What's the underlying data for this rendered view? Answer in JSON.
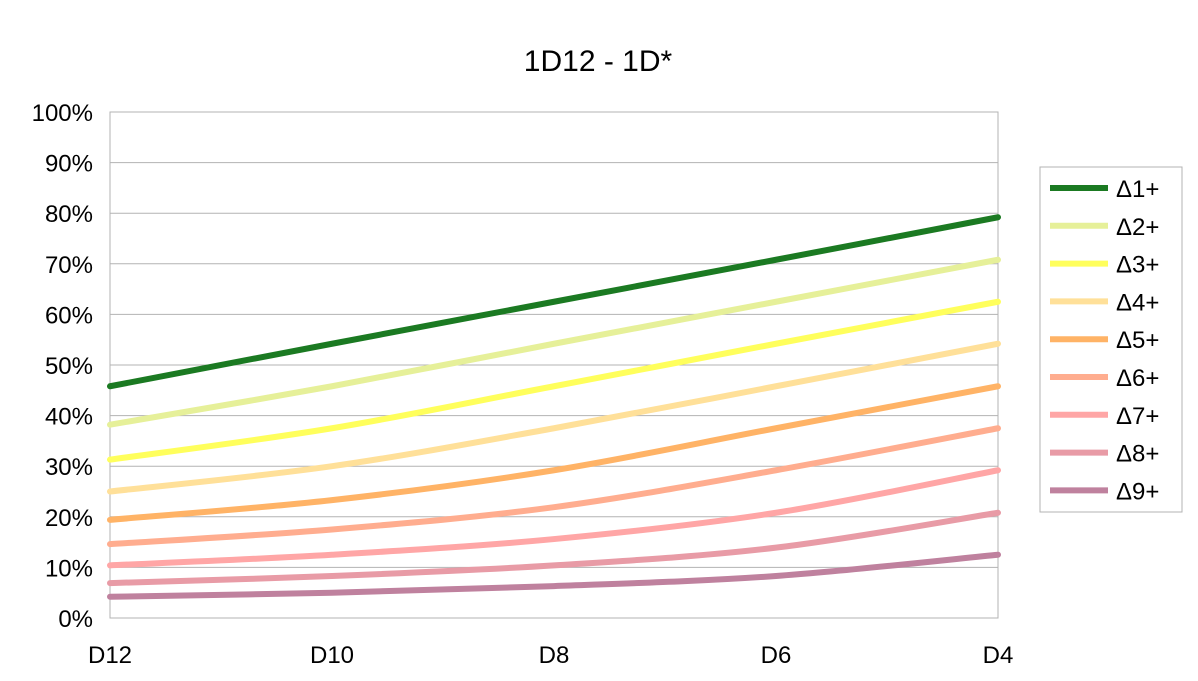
{
  "chart_data": {
    "type": "line",
    "title": "1D12 - 1D*",
    "xlabel": "",
    "ylabel": "",
    "categories": [
      "D12",
      "D10",
      "D8",
      "D6",
      "D4"
    ],
    "ylim": [
      0,
      100
    ],
    "ytick_values": [
      0,
      10,
      20,
      30,
      40,
      50,
      60,
      70,
      80,
      90,
      100
    ],
    "ytick_labels": [
      "0%",
      "10%",
      "20%",
      "30%",
      "40%",
      "50%",
      "60%",
      "70%",
      "80%",
      "90%",
      "100%"
    ],
    "grid": true,
    "legend_position": "right",
    "series": [
      {
        "name": "Δ1+",
        "color": "#1b7a22",
        "values": [
          45.8,
          54.2,
          62.5,
          70.8,
          79.2
        ]
      },
      {
        "name": "Δ2+",
        "color": "#e6f099",
        "values": [
          38.2,
          45.8,
          54.2,
          62.5,
          70.8
        ]
      },
      {
        "name": "Δ3+",
        "color": "#ffff5c",
        "values": [
          31.3,
          37.5,
          45.8,
          54.2,
          62.5
        ]
      },
      {
        "name": "Δ4+",
        "color": "#ffe099",
        "values": [
          25.0,
          30.0,
          37.5,
          45.8,
          54.2
        ]
      },
      {
        "name": "Δ5+",
        "color": "#ffb366",
        "values": [
          19.4,
          23.3,
          29.2,
          37.5,
          45.8
        ]
      },
      {
        "name": "Δ6+",
        "color": "#ffad8f",
        "values": [
          14.6,
          17.5,
          21.9,
          29.2,
          37.5
        ]
      },
      {
        "name": "Δ7+",
        "color": "#ffa6a6",
        "values": [
          10.4,
          12.5,
          15.6,
          20.8,
          29.2
        ]
      },
      {
        "name": "Δ8+",
        "color": "#e89ba6",
        "values": [
          6.9,
          8.3,
          10.4,
          13.9,
          20.8
        ]
      },
      {
        "name": "Δ9+",
        "color": "#bf819e",
        "values": [
          4.2,
          5.0,
          6.3,
          8.3,
          12.5
        ]
      }
    ]
  }
}
